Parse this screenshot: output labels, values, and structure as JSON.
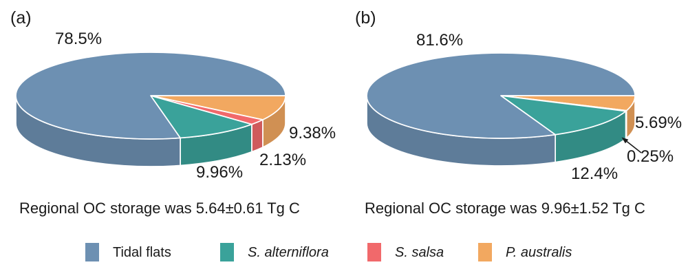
{
  "figure": {
    "background": "#ffffff",
    "text_color": "#1a1a1a"
  },
  "legend": {
    "items": [
      {
        "label": "Tidal flats",
        "color": "#6d90b2",
        "italic": false
      },
      {
        "label": "S. alterniflora",
        "color": "#3aa29a",
        "italic": true
      },
      {
        "label": "S. salsa",
        "color": "#f1696b",
        "italic": true
      },
      {
        "label": "P. australis",
        "color": "#f2a860",
        "italic": true
      }
    ]
  },
  "chart_data": [
    {
      "type": "pie",
      "style": "3d-pie",
      "panel_tag": "(a)",
      "caption": "Regional OC storage was 5.64±0.61 Tg C",
      "categories": [
        "Tidal flats",
        "S. alterniflora",
        "S. salsa",
        "P. australis"
      ],
      "values": [
        78.5,
        9.96,
        2.13,
        9.38
      ],
      "value_labels": [
        "78.5%",
        "9.96%",
        "2.13%",
        "9.38%"
      ],
      "colors": [
        "#6d90b2",
        "#3aa29a",
        "#f1696b",
        "#f2a860"
      ],
      "units": "%",
      "legend_position": "bottom"
    },
    {
      "type": "pie",
      "style": "3d-pie",
      "panel_tag": "(b)",
      "caption": "Regional OC storage was 9.96±1.52 Tg C",
      "categories": [
        "Tidal flats",
        "S. alterniflora",
        "S. salsa",
        "P. australis"
      ],
      "values": [
        81.6,
        12.4,
        0.25,
        5.69
      ],
      "value_labels": [
        "81.6%",
        "12.4%",
        "0.25%",
        "5.69%"
      ],
      "colors": [
        "#6d90b2",
        "#3aa29a",
        "#f1696b",
        "#f2a860"
      ],
      "units": "%",
      "legend_position": "bottom",
      "annotation": {
        "text": "0.25%",
        "style": "arrow-to-slice"
      }
    }
  ]
}
